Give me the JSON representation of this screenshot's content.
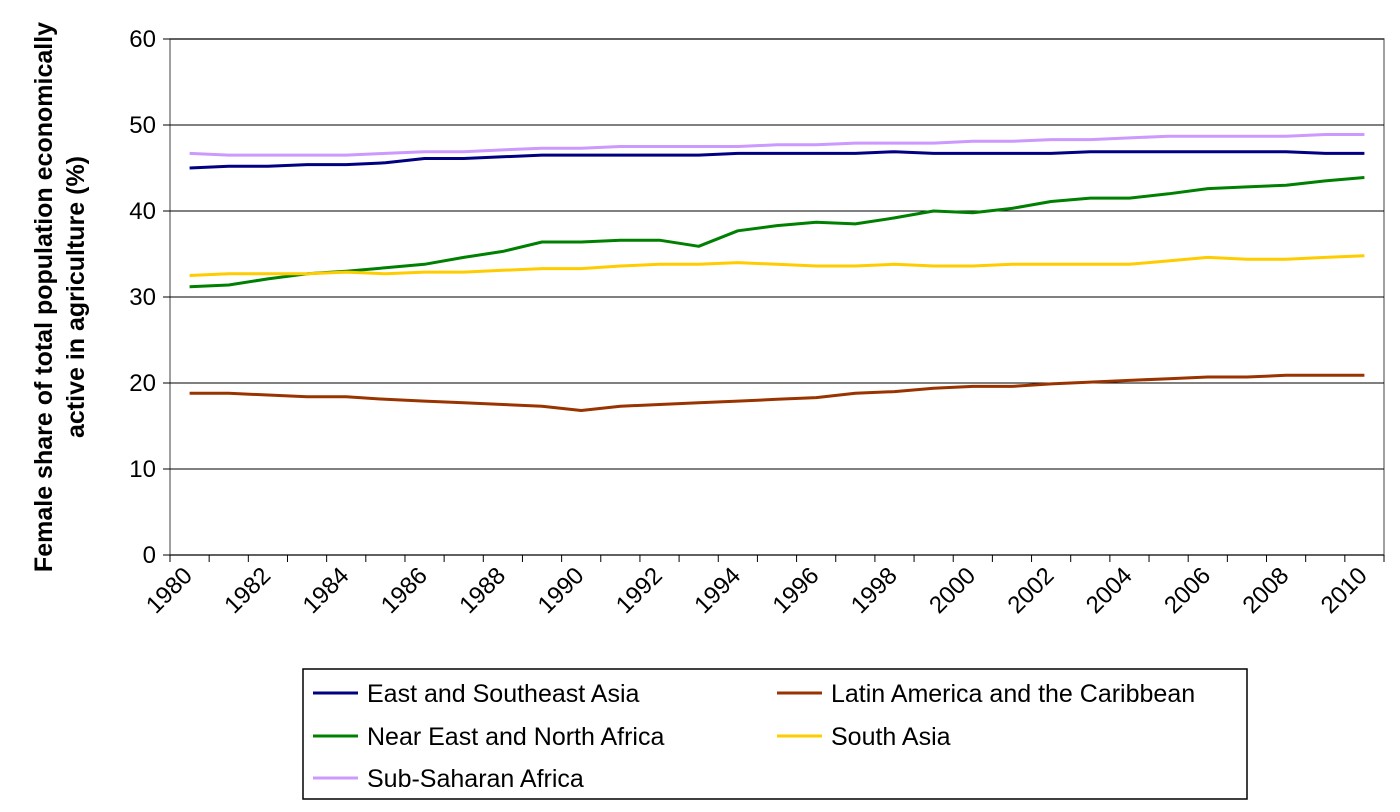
{
  "chart_data": {
    "type": "line",
    "title": "",
    "xlabel": "",
    "ylabel": "Female share of total population economically active in agriculture (%)",
    "ylabel_lines": [
      "Female share of total population economically",
      "active in agriculture (%)"
    ],
    "ylim": [
      0,
      60
    ],
    "yticks": [
      0,
      10,
      20,
      30,
      40,
      50,
      60
    ],
    "x": [
      1980,
      1981,
      1982,
      1983,
      1984,
      1985,
      1986,
      1987,
      1988,
      1989,
      1990,
      1991,
      1992,
      1993,
      1994,
      1995,
      1996,
      1997,
      1998,
      1999,
      2000,
      2001,
      2002,
      2003,
      2004,
      2005,
      2006,
      2007,
      2008,
      2009,
      2010
    ],
    "xtick_labels": [
      "1980",
      "1982",
      "1984",
      "1986",
      "1988",
      "1990",
      "1992",
      "1994",
      "1996",
      "1998",
      "2000",
      "2002",
      "2004",
      "2006",
      "2008",
      "2010"
    ],
    "grid": true,
    "legend_position": "bottom",
    "series": [
      {
        "name": "East and Southeast Asia",
        "color": "#000080",
        "values": [
          45.0,
          45.2,
          45.2,
          45.4,
          45.4,
          45.6,
          46.1,
          46.1,
          46.3,
          46.5,
          46.5,
          46.5,
          46.5,
          46.5,
          46.7,
          46.7,
          46.7,
          46.7,
          46.9,
          46.7,
          46.7,
          46.7,
          46.7,
          46.9,
          46.9,
          46.9,
          46.9,
          46.9,
          46.9,
          46.7,
          46.7
        ]
      },
      {
        "name": "Latin America and the Caribbean",
        "color": "#993300",
        "values": [
          18.8,
          18.8,
          18.6,
          18.4,
          18.4,
          18.1,
          17.9,
          17.7,
          17.5,
          17.3,
          16.8,
          17.3,
          17.5,
          17.7,
          17.9,
          18.1,
          18.3,
          18.8,
          19.0,
          19.4,
          19.6,
          19.6,
          19.9,
          20.1,
          20.3,
          20.5,
          20.7,
          20.7,
          20.9,
          20.9,
          20.9
        ]
      },
      {
        "name": "Near East and North Africa",
        "color": "#008000",
        "values": [
          31.2,
          31.4,
          32.1,
          32.7,
          33.0,
          33.4,
          33.8,
          34.6,
          35.3,
          36.4,
          36.4,
          36.6,
          36.6,
          35.9,
          37.7,
          38.3,
          38.7,
          38.5,
          39.2,
          40.0,
          39.8,
          40.3,
          41.1,
          41.5,
          41.5,
          42.0,
          42.6,
          42.8,
          43.0,
          43.5,
          43.9
        ]
      },
      {
        "name": "South Asia",
        "color": "#FFCC00",
        "values": [
          32.5,
          32.7,
          32.7,
          32.7,
          32.9,
          32.7,
          32.9,
          32.9,
          33.1,
          33.3,
          33.3,
          33.6,
          33.8,
          33.8,
          34.0,
          33.8,
          33.6,
          33.6,
          33.8,
          33.6,
          33.6,
          33.8,
          33.8,
          33.8,
          33.8,
          34.2,
          34.6,
          34.4,
          34.4,
          34.6,
          34.8
        ]
      },
      {
        "name": "Sub-Saharan Africa",
        "color": "#CC99FF",
        "values": [
          46.7,
          46.5,
          46.5,
          46.5,
          46.5,
          46.7,
          46.9,
          46.9,
          47.1,
          47.3,
          47.3,
          47.5,
          47.5,
          47.5,
          47.5,
          47.7,
          47.7,
          47.9,
          47.9,
          47.9,
          48.1,
          48.1,
          48.3,
          48.3,
          48.5,
          48.7,
          48.7,
          48.7,
          48.7,
          48.9,
          48.9
        ]
      }
    ]
  }
}
